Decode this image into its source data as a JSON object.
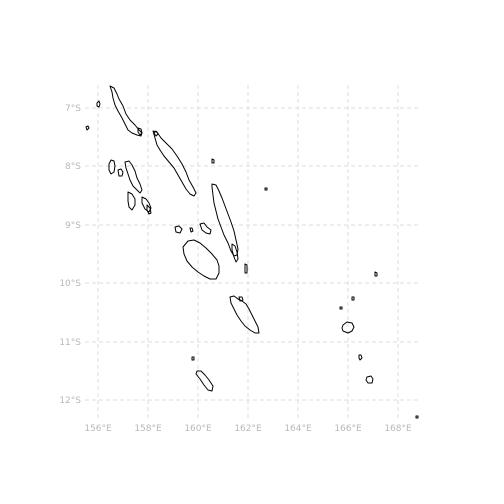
{
  "map": {
    "projection": "plate-carree",
    "graticule": "dashed",
    "lon_range": [
      155.5,
      168.8
    ],
    "lat_range": [
      -12.35,
      -6.45
    ],
    "x_ticks": [
      {
        "value": 156,
        "label": "156°E"
      },
      {
        "value": 158,
        "label": "158°E"
      },
      {
        "value": 160,
        "label": "160°E"
      },
      {
        "value": 162,
        "label": "162°E"
      },
      {
        "value": 164,
        "label": "164°E"
      },
      {
        "value": 166,
        "label": "166°E"
      },
      {
        "value": 168,
        "label": "168°E"
      }
    ],
    "y_ticks": [
      {
        "value": -7,
        "label": "7°S"
      },
      {
        "value": -8,
        "label": "8°S"
      },
      {
        "value": -9,
        "label": "9°S"
      },
      {
        "value": -10,
        "label": "10°S"
      },
      {
        "value": -11,
        "label": "11°S"
      },
      {
        "value": -12,
        "label": "12°S"
      }
    ],
    "colors": {
      "coastline": "#000000",
      "grid": "#dcdcdc",
      "tick_label": "#b8b8b8"
    },
    "features": "Solomon Islands coastline outlines"
  }
}
